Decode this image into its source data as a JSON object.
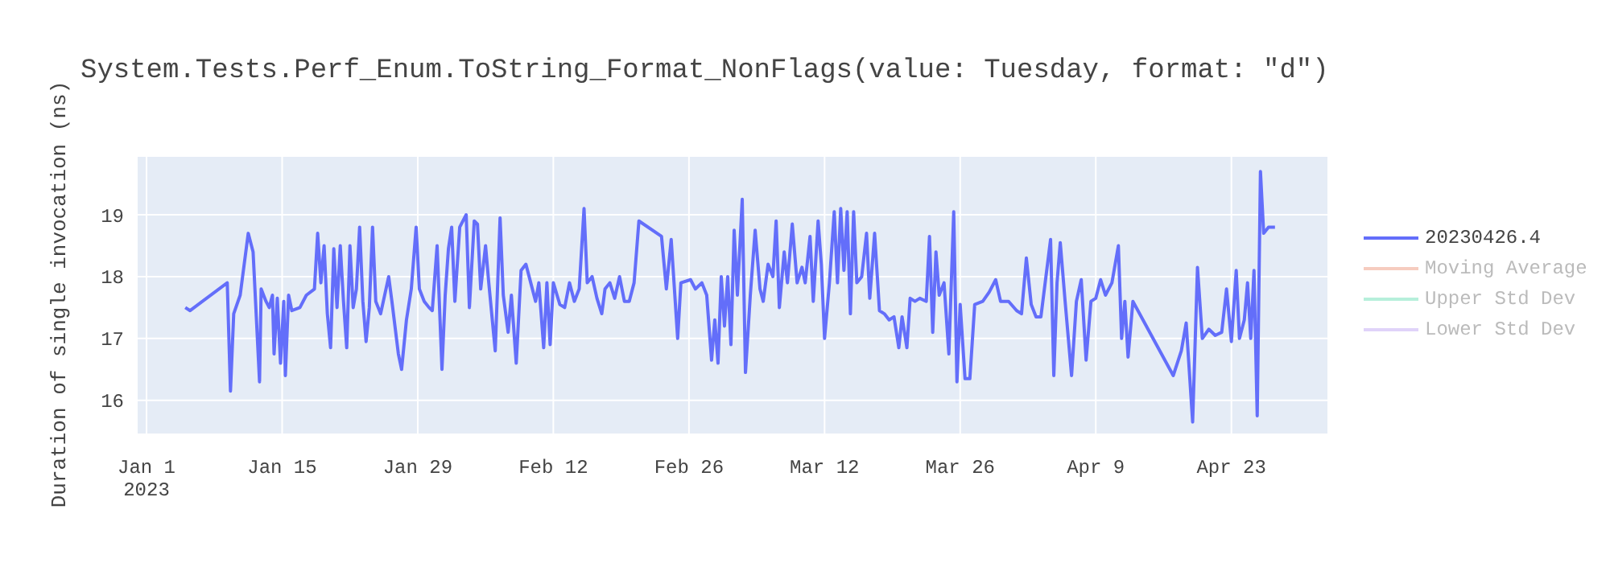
{
  "chart_data": {
    "type": "line",
    "title": "System.Tests.Perf_Enum.ToString_Format_NonFlags(value: Tuesday, format: \"d\")",
    "ylabel": "Duration of single invocation (ns)",
    "xlim": [
      "2022-12-31",
      "2023-05-03"
    ],
    "xticks": [
      {
        "value": "2023-01-01",
        "label": "Jan 1\n2023"
      },
      {
        "value": "2023-01-15",
        "label": "Jan 15"
      },
      {
        "value": "2023-01-29",
        "label": "Jan 29"
      },
      {
        "value": "2023-02-12",
        "label": "Feb 12"
      },
      {
        "value": "2023-02-26",
        "label": "Feb 26"
      },
      {
        "value": "2023-03-12",
        "label": "Mar 12"
      },
      {
        "value": "2023-03-26",
        "label": "Mar 26"
      },
      {
        "value": "2023-04-09",
        "label": "Apr 9"
      },
      {
        "value": "2023-04-23",
        "label": "Apr 23"
      }
    ],
    "ylim": [
      15.45,
      19.95
    ],
    "yticks": [
      16,
      17,
      18,
      19
    ],
    "grid": true,
    "legend": "top right",
    "marker": "none",
    "line_style": "solid",
    "series": [
      {
        "name": "20230426.4",
        "color": "#636efa",
        "x": [
          "2023-01-05T00:00",
          "2023-01-05T12:00",
          "2023-01-09T08:00",
          "2023-01-09T16:00",
          "2023-01-10T00:00",
          "2023-01-10T16:00",
          "2023-01-11T12:00",
          "2023-01-12T00:00",
          "2023-01-12T08:00",
          "2023-01-12T16:00",
          "2023-01-12T20:00",
          "2023-01-13T08:00",
          "2023-01-13T16:00",
          "2023-01-14T00:00",
          "2023-01-14T04:00",
          "2023-01-14T12:00",
          "2023-01-14T20:00",
          "2023-01-15T04:00",
          "2023-01-15T08:00",
          "2023-01-15T16:00",
          "2023-01-16T00:00",
          "2023-01-16T20:00",
          "2023-01-17T12:00",
          "2023-01-18T08:00",
          "2023-01-18T16:00",
          "2023-01-19T00:00",
          "2023-01-19T08:00",
          "2023-01-19T16:00",
          "2023-01-20T00:00",
          "2023-01-20T08:00",
          "2023-01-20T16:00",
          "2023-01-21T00:00",
          "2023-01-21T08:00",
          "2023-01-21T16:00",
          "2023-01-22T00:00",
          "2023-01-22T08:00",
          "2023-01-22T16:00",
          "2023-01-23T00:00",
          "2023-01-23T08:00",
          "2023-01-23T16:00",
          "2023-01-24T00:00",
          "2023-01-24T08:00",
          "2023-01-24T16:00",
          "2023-01-25T04:00",
          "2023-01-26T00:00",
          "2023-01-26T08:00",
          "2023-01-27T00:00",
          "2023-01-27T08:00",
          "2023-01-27T20:00",
          "2023-01-28T08:00",
          "2023-01-28T20:00",
          "2023-01-29T04:00",
          "2023-01-29T16:00",
          "2023-01-30T04:00",
          "2023-01-30T12:00",
          "2023-01-31T00:00",
          "2023-01-31T12:00",
          "2023-01-31T20:00",
          "2023-02-01T04:00",
          "2023-02-01T12:00",
          "2023-02-01T20:00",
          "2023-02-02T08:00",
          "2023-02-03T00:00",
          "2023-02-03T08:00",
          "2023-02-03T20:00",
          "2023-02-04T04:00",
          "2023-02-04T12:00",
          "2023-02-05T00:00",
          "2023-02-05T08:00",
          "2023-02-06T00:00",
          "2023-02-06T12:00",
          "2023-02-06T20:00",
          "2023-02-07T08:00",
          "2023-02-07T16:00",
          "2023-02-08T04:00",
          "2023-02-08T16:00",
          "2023-02-09T04:00",
          "2023-02-09T16:00",
          "2023-02-10T04:00",
          "2023-02-10T12:00",
          "2023-02-11T00:00",
          "2023-02-11T08:00",
          "2023-02-11T16:00",
          "2023-02-12T00:00",
          "2023-02-12T16:00",
          "2023-02-13T04:00",
          "2023-02-13T16:00",
          "2023-02-14T04:00",
          "2023-02-14T16:00",
          "2023-02-15T04:00",
          "2023-02-15T12:00",
          "2023-02-16T00:00",
          "2023-02-16T12:00",
          "2023-02-17T00:00",
          "2023-02-17T08:00",
          "2023-02-17T20:00",
          "2023-02-18T08:00",
          "2023-02-18T20:00",
          "2023-02-19T08:00",
          "2023-02-19T20:00",
          "2023-02-20T08:00",
          "2023-02-20T20:00",
          "2023-02-23T04:00",
          "2023-02-23T16:00",
          "2023-02-24T04:00",
          "2023-02-24T20:00",
          "2023-02-25T04:00",
          "2023-02-26T04:00",
          "2023-02-26T16:00",
          "2023-02-27T08:00",
          "2023-02-27T20:00",
          "2023-02-28T08:00",
          "2023-02-28T16:00",
          "2023-03-01T00:00",
          "2023-03-01T08:00",
          "2023-03-01T16:00",
          "2023-03-02T00:00",
          "2023-03-02T08:00",
          "2023-03-02T16:00",
          "2023-03-03T00:00",
          "2023-03-03T12:00",
          "2023-03-03T20:00",
          "2023-03-04T08:00",
          "2023-03-04T20:00",
          "2023-03-05T08:00",
          "2023-03-05T16:00",
          "2023-03-06T04:00",
          "2023-03-06T16:00",
          "2023-03-07T00:00",
          "2023-03-07T08:00",
          "2023-03-07T20:00",
          "2023-03-08T04:00",
          "2023-03-08T16:00",
          "2023-03-09T04:00",
          "2023-03-09T16:00",
          "2023-03-10T00:00",
          "2023-03-10T12:00",
          "2023-03-10T20:00",
          "2023-03-11T08:00",
          "2023-03-11T16:00",
          "2023-03-12T00:00",
          "2023-03-12T12:00",
          "2023-03-13T00:00",
          "2023-03-13T08:00",
          "2023-03-13T16:00",
          "2023-03-14T00:00",
          "2023-03-14T08:00",
          "2023-03-14T16:00",
          "2023-03-15T00:00",
          "2023-03-15T08:00",
          "2023-03-15T20:00",
          "2023-03-16T08:00",
          "2023-03-16T16:00",
          "2023-03-17T04:00",
          "2023-03-17T16:00",
          "2023-03-18T04:00",
          "2023-03-18T16:00",
          "2023-03-19T04:00",
          "2023-03-19T16:00",
          "2023-03-20T00:00",
          "2023-03-20T12:00",
          "2023-03-20T20:00",
          "2023-03-21T08:00",
          "2023-03-21T20:00",
          "2023-03-22T12:00",
          "2023-03-22T20:00",
          "2023-03-23T04:00",
          "2023-03-23T12:00",
          "2023-03-23T20:00",
          "2023-03-24T08:00",
          "2023-03-24T20:00",
          "2023-03-25T08:00",
          "2023-03-25T16:00",
          "2023-03-26T00:00",
          "2023-03-26T12:00",
          "2023-03-27T00:00",
          "2023-03-27T12:00",
          "2023-03-28T08:00",
          "2023-03-29T00:00",
          "2023-03-29T16:00",
          "2023-03-30T04:00",
          "2023-03-31T00:00",
          "2023-03-31T20:00",
          "2023-04-01T08:00",
          "2023-04-01T20:00",
          "2023-04-02T08:00",
          "2023-04-02T20:00",
          "2023-04-03T08:00",
          "2023-04-04T08:00",
          "2023-04-04T16:00",
          "2023-04-05T00:00",
          "2023-04-05T08:00",
          "2023-04-05T20:00",
          "2023-04-06T12:00",
          "2023-04-07T00:00",
          "2023-04-07T12:00",
          "2023-04-08T00:00",
          "2023-04-08T12:00",
          "2023-04-09T00:00",
          "2023-04-09T12:00",
          "2023-04-10T00:00",
          "2023-04-10T16:00",
          "2023-04-11T08:00",
          "2023-04-11T16:00",
          "2023-04-12T00:00",
          "2023-04-12T08:00",
          "2023-04-12T20:00",
          "2023-04-17T00:00",
          "2023-04-17T20:00",
          "2023-04-18T08:00",
          "2023-04-19T00:00",
          "2023-04-19T12:00",
          "2023-04-20T00:00",
          "2023-04-20T16:00",
          "2023-04-21T08:00",
          "2023-04-22T00:00",
          "2023-04-22T12:00",
          "2023-04-23T00:00",
          "2023-04-23T12:00",
          "2023-04-23T20:00",
          "2023-04-24T08:00",
          "2023-04-24T16:00",
          "2023-04-25T00:00",
          "2023-04-25T08:00",
          "2023-04-25T16:00",
          "2023-04-26T00:00",
          "2023-04-26T08:00",
          "2023-04-26T20:00",
          "2023-04-27T12:00"
        ],
        "values": [
          17.5,
          17.45,
          17.9,
          16.15,
          17.4,
          17.7,
          18.7,
          18.4,
          17.35,
          16.3,
          17.8,
          17.6,
          17.5,
          17.7,
          16.75,
          17.65,
          16.6,
          17.6,
          16.4,
          17.7,
          17.45,
          17.5,
          17.7,
          17.8,
          18.7,
          17.9,
          18.5,
          17.4,
          16.85,
          18.45,
          17.5,
          18.5,
          17.6,
          16.85,
          18.5,
          17.5,
          17.8,
          18.8,
          17.6,
          16.95,
          17.5,
          18.8,
          17.6,
          17.4,
          18.0,
          17.6,
          16.75,
          16.5,
          17.3,
          17.8,
          18.8,
          17.8,
          17.6,
          17.5,
          17.45,
          18.5,
          16.5,
          17.7,
          18.45,
          18.8,
          17.6,
          18.8,
          19.0,
          17.5,
          18.9,
          18.85,
          17.8,
          18.5,
          17.9,
          16.8,
          18.95,
          17.7,
          17.1,
          17.7,
          16.6,
          18.1,
          18.2,
          17.9,
          17.6,
          17.9,
          16.85,
          17.9,
          16.9,
          17.9,
          17.55,
          17.5,
          17.9,
          17.6,
          17.8,
          19.1,
          17.9,
          18.0,
          17.65,
          17.4,
          17.8,
          17.9,
          17.65,
          18.0,
          17.6,
          17.6,
          17.9,
          18.9,
          18.65,
          17.8,
          18.6,
          17.0,
          17.9,
          17.95,
          17.8,
          17.9,
          17.7,
          16.65,
          17.3,
          16.6,
          18.0,
          17.2,
          18.0,
          16.9,
          18.75,
          17.7,
          19.25,
          16.45,
          17.7,
          18.75,
          17.8,
          17.6,
          18.2,
          18.0,
          18.9,
          17.5,
          18.4,
          17.9,
          18.85,
          17.9,
          18.15,
          17.9,
          18.65,
          17.6,
          18.9,
          18.2,
          17.0,
          17.9,
          19.05,
          17.9,
          19.1,
          18.1,
          19.05,
          17.4,
          19.05,
          17.9,
          18.0,
          18.7,
          17.65,
          18.7,
          17.45,
          17.4,
          17.3,
          17.35,
          16.85,
          17.35,
          16.85,
          17.65,
          17.6,
          17.65,
          17.6,
          18.65,
          17.1,
          18.4,
          17.7,
          17.9,
          16.75,
          19.05,
          16.3,
          17.55,
          16.35,
          16.35,
          17.55,
          17.6,
          17.75,
          17.95,
          17.6,
          17.6,
          17.45,
          17.4,
          18.3,
          17.55,
          17.35,
          17.35,
          18.6,
          16.4,
          17.9,
          18.55,
          17.6,
          16.4,
          17.6,
          17.95,
          16.65,
          17.6,
          17.65,
          17.95,
          17.7,
          17.9,
          18.5,
          17.0,
          17.6,
          16.7,
          17.6,
          16.4,
          16.8,
          17.25,
          15.65,
          18.15,
          17.0,
          17.15,
          17.05,
          17.1,
          17.8,
          16.95,
          18.1,
          17.0,
          17.3,
          17.9,
          17.0,
          18.1,
          15.75,
          19.7,
          18.7,
          18.8,
          18.8
        ]
      },
      {
        "name": "Moving Average",
        "color": "#ef9a80"
      },
      {
        "name": "Upper Std Dev",
        "color": "#6fe0b8"
      },
      {
        "name": "Lower Std Dev",
        "color": "#c3a8f5"
      }
    ]
  }
}
